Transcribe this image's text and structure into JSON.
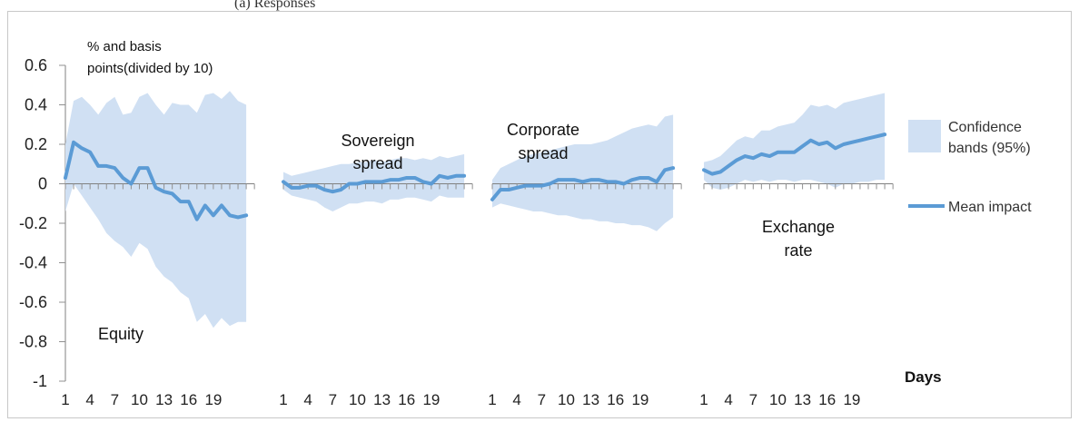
{
  "caption": "(a) Responses",
  "chart_data": {
    "type": "line",
    "y_axis_title": [
      "% and basis",
      "points(divided by 10)"
    ],
    "ylim": [
      -1,
      0.6
    ],
    "yticks": [
      0.6,
      0.4,
      0.2,
      0,
      -0.2,
      -0.4,
      -0.6,
      -0.8,
      -1
    ],
    "ytick_labels": [
      "0.6",
      "0.4",
      "0.2",
      "0",
      "-0.2",
      "-0.4",
      "-0.6",
      "-0.8",
      "-1"
    ],
    "x_tick_labels": [
      "1",
      "4",
      "7",
      "10",
      "13",
      "16",
      "19"
    ],
    "x_title": "Days",
    "legend": {
      "band_label": [
        "Confidence",
        "bands (95%)"
      ],
      "line_label": "Mean impact",
      "band_color": "#d0e0f3",
      "line_color": "#5b9bd5"
    },
    "panels": [
      {
        "label": [
          "Equity"
        ],
        "x": [
          1,
          2,
          3,
          4,
          5,
          6,
          7,
          8,
          9,
          10,
          11,
          12,
          13,
          14,
          15,
          16,
          17,
          18,
          19,
          20,
          21,
          22,
          23
        ],
        "mean": [
          0.03,
          0.21,
          0.18,
          0.16,
          0.09,
          0.09,
          0.08,
          0.03,
          0.0,
          0.08,
          0.08,
          -0.02,
          -0.04,
          -0.05,
          -0.09,
          -0.09,
          -0.18,
          -0.11,
          -0.16,
          -0.11,
          -0.16,
          -0.17,
          -0.16
        ],
        "upper": [
          0.2,
          0.42,
          0.44,
          0.4,
          0.35,
          0.41,
          0.44,
          0.35,
          0.36,
          0.44,
          0.46,
          0.4,
          0.35,
          0.41,
          0.4,
          0.4,
          0.36,
          0.45,
          0.46,
          0.43,
          0.47,
          0.42,
          0.4
        ],
        "lower": [
          -0.14,
          0.0,
          -0.06,
          -0.12,
          -0.18,
          -0.25,
          -0.29,
          -0.32,
          -0.37,
          -0.3,
          -0.33,
          -0.42,
          -0.47,
          -0.5,
          -0.55,
          -0.58,
          -0.7,
          -0.66,
          -0.73,
          -0.68,
          -0.72,
          -0.7,
          -0.7
        ]
      },
      {
        "label": [
          "Sovereign",
          "spread"
        ],
        "x": [
          1,
          2,
          3,
          4,
          5,
          6,
          7,
          8,
          9,
          10,
          11,
          12,
          13,
          14,
          15,
          16,
          17,
          18,
          19,
          20,
          21,
          22,
          23
        ],
        "mean": [
          0.01,
          -0.02,
          -0.02,
          -0.01,
          -0.01,
          -0.03,
          -0.04,
          -0.03,
          0.0,
          0.0,
          0.01,
          0.01,
          0.01,
          0.02,
          0.02,
          0.03,
          0.03,
          0.01,
          0.0,
          0.04,
          0.03,
          0.04,
          0.04
        ],
        "upper": [
          0.06,
          0.04,
          0.05,
          0.06,
          0.07,
          0.08,
          0.09,
          0.1,
          0.1,
          0.11,
          0.11,
          0.12,
          0.11,
          0.12,
          0.13,
          0.13,
          0.12,
          0.13,
          0.12,
          0.14,
          0.13,
          0.14,
          0.15
        ],
        "lower": [
          -0.03,
          -0.06,
          -0.07,
          -0.08,
          -0.09,
          -0.12,
          -0.14,
          -0.12,
          -0.1,
          -0.1,
          -0.09,
          -0.09,
          -0.1,
          -0.08,
          -0.08,
          -0.07,
          -0.07,
          -0.08,
          -0.09,
          -0.06,
          -0.07,
          -0.07,
          -0.07
        ]
      },
      {
        "label": [
          "Corporate",
          "spread"
        ],
        "x": [
          1,
          2,
          3,
          4,
          5,
          6,
          7,
          8,
          9,
          10,
          11,
          12,
          13,
          14,
          15,
          16,
          17,
          18,
          19,
          20,
          21,
          22,
          23
        ],
        "mean": [
          -0.08,
          -0.03,
          -0.03,
          -0.02,
          -0.01,
          -0.01,
          -0.01,
          0.0,
          0.02,
          0.02,
          0.02,
          0.01,
          0.02,
          0.02,
          0.01,
          0.01,
          0.0,
          0.02,
          0.03,
          0.03,
          0.01,
          0.07,
          0.08
        ],
        "upper": [
          0.02,
          0.08,
          0.1,
          0.12,
          0.14,
          0.15,
          0.16,
          0.17,
          0.18,
          0.19,
          0.2,
          0.2,
          0.2,
          0.21,
          0.22,
          0.24,
          0.26,
          0.28,
          0.29,
          0.3,
          0.29,
          0.34,
          0.35
        ],
        "lower": [
          -0.12,
          -0.1,
          -0.11,
          -0.12,
          -0.13,
          -0.14,
          -0.14,
          -0.15,
          -0.16,
          -0.16,
          -0.17,
          -0.18,
          -0.18,
          -0.19,
          -0.19,
          -0.2,
          -0.2,
          -0.21,
          -0.21,
          -0.22,
          -0.24,
          -0.2,
          -0.17
        ]
      },
      {
        "label": [
          "Exchange",
          "rate"
        ],
        "x": [
          1,
          2,
          3,
          4,
          5,
          6,
          7,
          8,
          9,
          10,
          11,
          12,
          13,
          14,
          15,
          16,
          17,
          18,
          19,
          20,
          21,
          22,
          23
        ],
        "mean": [
          0.07,
          0.05,
          0.06,
          0.09,
          0.12,
          0.14,
          0.13,
          0.15,
          0.14,
          0.16,
          0.16,
          0.16,
          0.19,
          0.22,
          0.2,
          0.21,
          0.18,
          0.2,
          0.21,
          0.22,
          0.23,
          0.24,
          0.25
        ],
        "upper": [
          0.11,
          0.12,
          0.14,
          0.18,
          0.22,
          0.24,
          0.23,
          0.27,
          0.27,
          0.29,
          0.3,
          0.31,
          0.35,
          0.4,
          0.39,
          0.4,
          0.38,
          0.41,
          0.42,
          0.43,
          0.44,
          0.45,
          0.46
        ],
        "lower": [
          0.02,
          -0.02,
          -0.03,
          -0.02,
          0.0,
          0.02,
          0.01,
          0.02,
          0.01,
          0.02,
          0.02,
          0.01,
          0.02,
          0.02,
          0.01,
          0.0,
          -0.02,
          0.0,
          0.0,
          0.01,
          0.01,
          0.02,
          0.02
        ]
      }
    ]
  }
}
